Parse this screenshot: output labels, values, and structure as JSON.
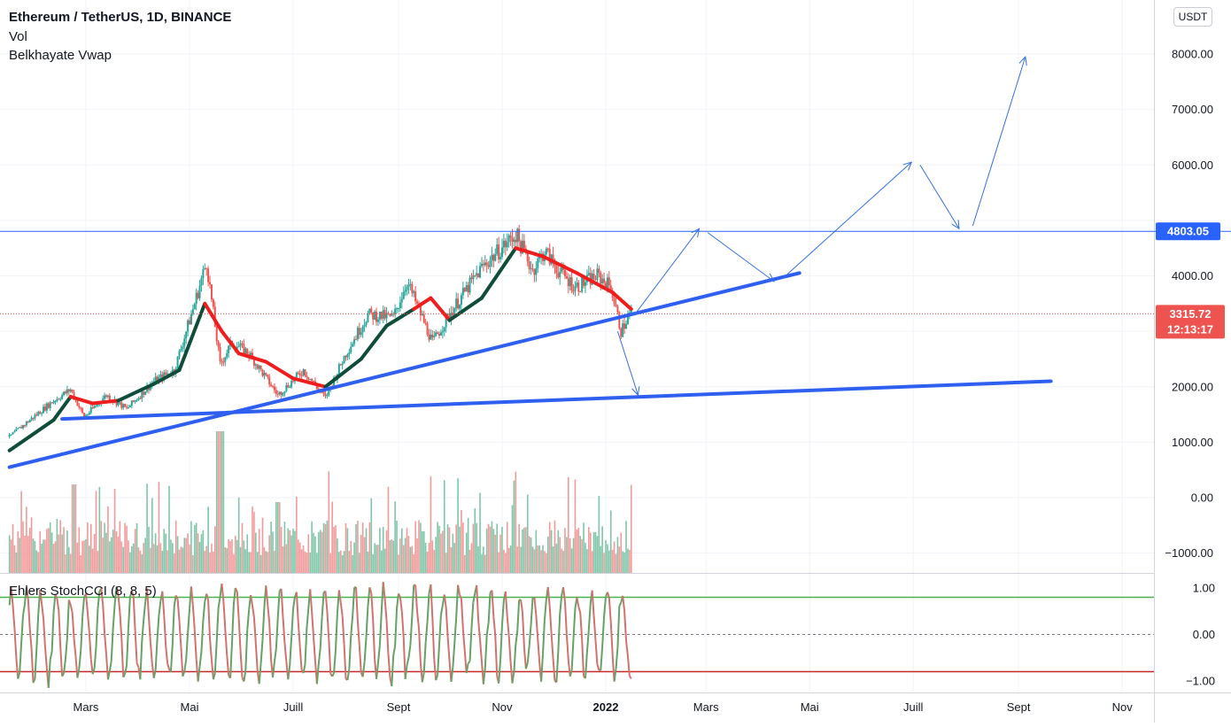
{
  "header": {
    "title": "Ethereum / TetherUS, 1D, BINANCE",
    "line2": "Vol",
    "line3": "Belkhayate Vwap",
    "currency_button": "USDT"
  },
  "oscillator": {
    "label": "Ehlers StochCCI (8, 8, 5)",
    "ticks": [
      {
        "value": 1.0,
        "label": "1.00"
      },
      {
        "value": 0.0,
        "label": "0.00"
      },
      {
        "value": -1.0,
        "label": "−1.00"
      }
    ],
    "upper_level": 0.8,
    "lower_level": -0.8,
    "colors": {
      "upper": "#4caf50",
      "lower": "#c62828",
      "line_up": "#66a266",
      "line_down": "#d2726f"
    }
  },
  "chart_data": {
    "type": "candlestick",
    "ylim": [
      -1200,
      8400
    ],
    "y_ticks": [
      {
        "value": 8000,
        "label": "8000.00"
      },
      {
        "value": 7000,
        "label": "7000.00"
      },
      {
        "value": 6000,
        "label": "6000.00"
      },
      {
        "value": 4000,
        "label": "4000.00"
      },
      {
        "value": 2000,
        "label": "2000.00"
      },
      {
        "value": 1000,
        "label": "1000.00"
      },
      {
        "value": 0,
        "label": "0.00"
      },
      {
        "value": -1000,
        "label": "−1000.00"
      }
    ],
    "x_ticks": [
      {
        "date": "2021-03-01",
        "label": "Mars",
        "bold": false
      },
      {
        "date": "2021-05-01",
        "label": "Mai",
        "bold": false
      },
      {
        "date": "2021-07-01",
        "label": "Juill",
        "bold": false
      },
      {
        "date": "2021-09-01",
        "label": "Sept",
        "bold": false
      },
      {
        "date": "2021-11-01",
        "label": "Nov",
        "bold": false
      },
      {
        "date": "2022-01-01",
        "label": "2022",
        "bold": true
      },
      {
        "date": "2022-03-01",
        "label": "Mars",
        "bold": false
      },
      {
        "date": "2022-05-01",
        "label": "Mai",
        "bold": false
      },
      {
        "date": "2022-07-01",
        "label": "Juill",
        "bold": false
      },
      {
        "date": "2022-09-01",
        "label": "Sept",
        "bold": false
      },
      {
        "date": "2022-11-01",
        "label": "Nov",
        "bold": false
      }
    ],
    "price_path": [
      [
        "2021-01-15",
        1100
      ],
      [
        "2021-02-10",
        1750
      ],
      [
        "2021-02-20",
        1950
      ],
      [
        "2021-02-28",
        1450
      ],
      [
        "2021-03-13",
        1850
      ],
      [
        "2021-03-25",
        1600
      ],
      [
        "2021-04-10",
        2100
      ],
      [
        "2021-04-22",
        2300
      ],
      [
        "2021-05-03",
        3400
      ],
      [
        "2021-05-11",
        4250
      ],
      [
        "2021-05-19",
        2400
      ],
      [
        "2021-05-26",
        2800
      ],
      [
        "2021-06-05",
        2600
      ],
      [
        "2021-06-22",
        1850
      ],
      [
        "2021-07-07",
        2300
      ],
      [
        "2021-07-20",
        1800
      ],
      [
        "2021-08-01",
        2600
      ],
      [
        "2021-08-14",
        3300
      ],
      [
        "2021-08-29",
        3250
      ],
      [
        "2021-09-06",
        3900
      ],
      [
        "2021-09-21",
        2800
      ],
      [
        "2021-10-03",
        3400
      ],
      [
        "2021-10-20",
        4150
      ],
      [
        "2021-11-09",
        4750
      ],
      [
        "2021-11-19",
        4100
      ],
      [
        "2021-11-26",
        4450
      ],
      [
        "2021-12-04",
        4100
      ],
      [
        "2021-12-14",
        3800
      ],
      [
        "2021-12-27",
        4000
      ],
      [
        "2022-01-04",
        3800
      ],
      [
        "2022-01-10",
        3000
      ],
      [
        "2022-01-16",
        3350
      ]
    ],
    "vwap_path": [
      [
        "2021-01-15",
        850,
        "up"
      ],
      [
        "2021-02-10",
        1400,
        "up"
      ],
      [
        "2021-02-20",
        1820,
        "up"
      ],
      [
        "2021-03-05",
        1700,
        "down"
      ],
      [
        "2021-03-20",
        1750,
        "down"
      ],
      [
        "2021-04-10",
        2050,
        "up"
      ],
      [
        "2021-04-25",
        2300,
        "up"
      ],
      [
        "2021-05-10",
        3500,
        "up"
      ],
      [
        "2021-05-20",
        3000,
        "down"
      ],
      [
        "2021-05-30",
        2600,
        "down"
      ],
      [
        "2021-06-15",
        2450,
        "down"
      ],
      [
        "2021-07-01",
        2150,
        "down"
      ],
      [
        "2021-07-20",
        2000,
        "down"
      ],
      [
        "2021-08-10",
        2500,
        "up"
      ],
      [
        "2021-08-25",
        3100,
        "up"
      ],
      [
        "2021-09-10",
        3400,
        "up"
      ],
      [
        "2021-09-20",
        3600,
        "down"
      ],
      [
        "2021-10-01",
        3200,
        "down"
      ],
      [
        "2021-10-20",
        3600,
        "up"
      ],
      [
        "2021-11-09",
        4500,
        "up"
      ],
      [
        "2021-11-25",
        4350,
        "down"
      ],
      [
        "2021-12-15",
        4050,
        "down"
      ],
      [
        "2022-01-05",
        3700,
        "down"
      ],
      [
        "2022-01-16",
        3400,
        "down"
      ]
    ],
    "current_price": {
      "value": 3315.72,
      "label": "3315.72",
      "countdown": "12:13:17",
      "color": "#ef5350"
    },
    "level_line": {
      "value": 4803.05,
      "label": "4803.05",
      "color": "#2962ff"
    },
    "trendlines": [
      {
        "from": [
          "2021-01-15",
          550
        ],
        "to": [
          "2022-04-25",
          4050
        ],
        "color": "#2f5ff0"
      },
      {
        "from": [
          "2021-02-15",
          1420
        ],
        "to": [
          "2022-09-20",
          2100
        ],
        "color": "#2f5ff0"
      }
    ],
    "projection_path": [
      [
        "2022-01-18",
        3300
      ],
      [
        "2022-02-25",
        4850
      ],
      [
        "2022-03-02",
        4780
      ],
      [
        "2022-04-10",
        3900
      ],
      [
        "2022-04-15",
        3950
      ],
      [
        "2022-06-30",
        6050
      ],
      [
        "2022-07-05",
        6000
      ],
      [
        "2022-07-28",
        4850
      ],
      [
        "2022-08-05",
        4900
      ],
      [
        "2022-09-05",
        7950
      ]
    ],
    "projection_down": [
      [
        "2022-01-08",
        3000
      ],
      [
        "2022-01-20",
        1850
      ]
    ],
    "projection_color": "#3570e6",
    "volume_color_up": "#7fc6a8",
    "volume_color_down": "#f29a9a"
  }
}
